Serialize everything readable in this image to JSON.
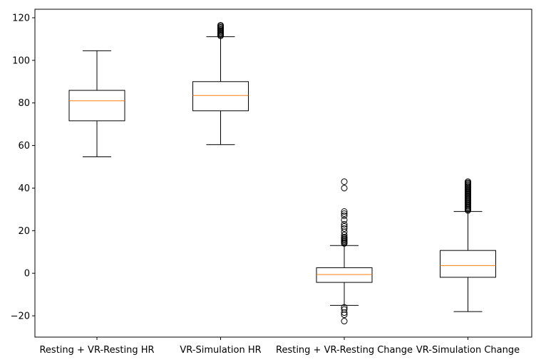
{
  "chart_data": {
    "type": "box",
    "title": "",
    "xlabel": "",
    "ylabel": "",
    "ylim": [
      -30,
      124
    ],
    "yticks": [
      -20,
      0,
      20,
      40,
      60,
      80,
      100,
      120
    ],
    "ytick_labels": [
      "−20",
      "0",
      "20",
      "40",
      "60",
      "80",
      "100",
      "120"
    ],
    "grid": false,
    "legend": "none",
    "colors": {
      "box": "#000000",
      "median": "#ff7f0e",
      "outlier": "#000000",
      "background": "#ffffff"
    },
    "categories": [
      "Resting + VR-Resting HR",
      "VR-Simulation HR",
      "Resting + VR-Resting Change",
      "VR-Simulation Change"
    ],
    "boxes": [
      {
        "whisker_low": 54.7,
        "q1": 71.6,
        "median": 81.0,
        "q3": 85.9,
        "whisker_high": 104.5,
        "outliers": []
      },
      {
        "whisker_low": 60.4,
        "q1": 76.3,
        "median": 83.5,
        "q3": 90.0,
        "whisker_high": 111.1,
        "outliers": [
          111.5,
          112.0,
          112.5,
          113.0,
          113.5,
          114.0,
          114.5,
          115.0,
          115.5,
          116.0,
          116.5
        ]
      },
      {
        "whisker_low": -15.1,
        "q1": -4.3,
        "median": -0.6,
        "q3": 2.6,
        "whisker_high": 13.0,
        "outliers": [
          14.0,
          14.5,
          15.0,
          15.5,
          16.0,
          16.5,
          17.0,
          18.0,
          19.5,
          21.0,
          22.0,
          23.0,
          25.0,
          27.0,
          28.0,
          29.0,
          40.0,
          43.0,
          -16.0,
          -17.0,
          -18.5,
          -19.5,
          -22.5
        ]
      },
      {
        "whisker_low": -18.0,
        "q1": -1.9,
        "median": 3.6,
        "q3": 10.7,
        "whisker_high": 29.0,
        "outliers": [
          29.5,
          30.0,
          30.5,
          31.0,
          31.5,
          32.0,
          32.5,
          33.0,
          33.5,
          34.0,
          34.5,
          35.0,
          35.5,
          36.0,
          36.5,
          37.0,
          37.5,
          38.0,
          38.5,
          39.0,
          39.5,
          40.0,
          40.5,
          41.0,
          41.5,
          42.0,
          42.5,
          43.0
        ]
      }
    ]
  }
}
